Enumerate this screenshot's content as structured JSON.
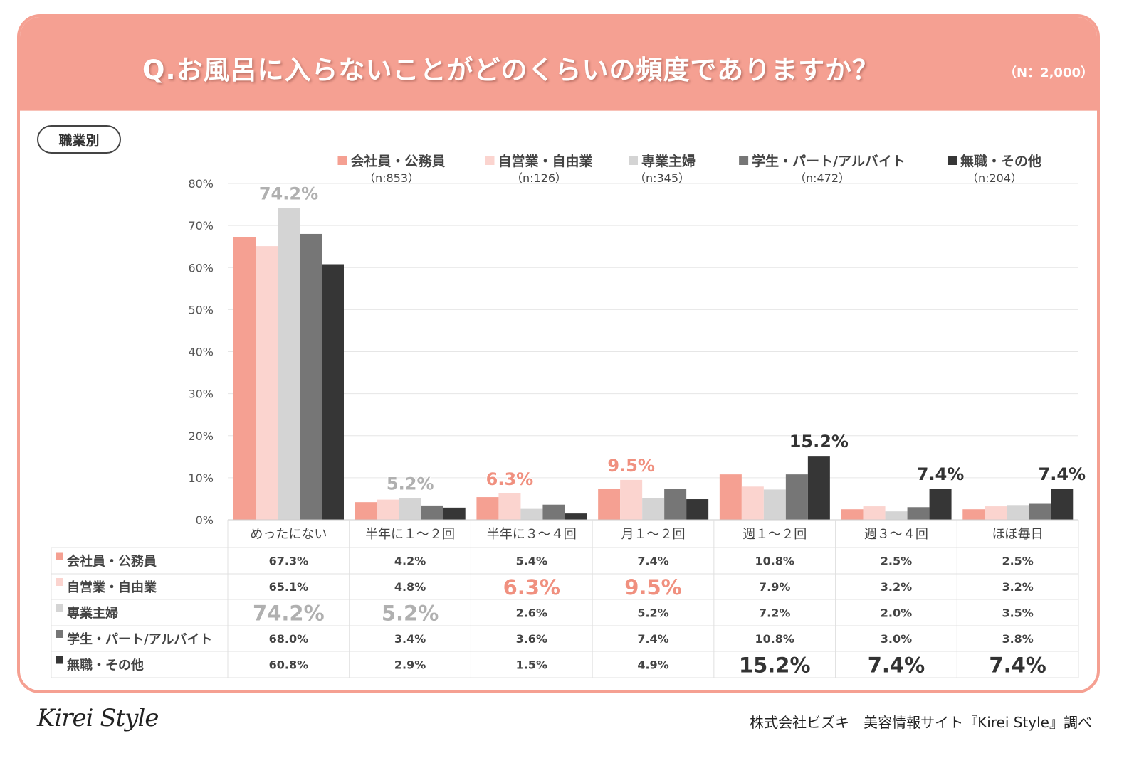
{
  "header": {
    "title": "Q.お風呂に入らないことがどのくらいの頻度でありますか？",
    "sample": "（N：2,000）"
  },
  "tag": "職業別",
  "legend": [
    {
      "label": "会社員・公務員",
      "n": "（n:853）"
    },
    {
      "label": "自営業・自由業",
      "n": "（n:126）"
    },
    {
      "label": "専業主婦",
      "n": "（n:345）"
    },
    {
      "label": "学生・パート/アルバイト",
      "n": "（n:472）"
    },
    {
      "label": "無職・その他",
      "n": "（n:204）"
    }
  ],
  "chart_data": {
    "type": "bar",
    "ylim": [
      0,
      80
    ],
    "yticks": [
      "0%",
      "10%",
      "20%",
      "30%",
      "40%",
      "50%",
      "60%",
      "70%",
      "80%"
    ],
    "grid": true,
    "legend_position": "top",
    "categories": [
      "めったにない",
      "半年に１～２回",
      "半年に３～４回",
      "月１～２回",
      "週１～２回",
      "週３～４回",
      "ほぼ毎日"
    ],
    "series": [
      {
        "name": "会社員・公務員",
        "color": "#f5a092",
        "values": [
          67.3,
          4.2,
          5.4,
          7.4,
          10.8,
          2.5,
          2.5
        ],
        "labels": [
          "67.3%",
          "4.2%",
          "5.4%",
          "7.4%",
          "10.8%",
          "2.5%",
          "2.5%"
        ]
      },
      {
        "name": "自営業・自由業",
        "color": "#fbd4cf",
        "values": [
          65.1,
          4.8,
          6.3,
          9.5,
          7.9,
          3.2,
          3.2
        ],
        "labels": [
          "65.1%",
          "4.8%",
          "6.3%",
          "9.5%",
          "7.9%",
          "3.2%",
          "3.2%"
        ]
      },
      {
        "name": "専業主婦",
        "color": "#d4d4d4",
        "values": [
          74.2,
          5.2,
          2.6,
          5.2,
          7.2,
          2.0,
          3.5
        ],
        "labels": [
          "74.2%",
          "5.2%",
          "2.6%",
          "5.2%",
          "7.2%",
          "2.0%",
          "3.5%"
        ]
      },
      {
        "name": "学生・パート/アルバイト",
        "color": "#767676",
        "values": [
          68.0,
          3.4,
          3.6,
          7.4,
          10.8,
          3.0,
          3.8
        ],
        "labels": [
          "68.0%",
          "3.4%",
          "3.6%",
          "7.4%",
          "10.8%",
          "3.0%",
          "3.8%"
        ]
      },
      {
        "name": "無職・その他",
        "color": "#363636",
        "values": [
          60.8,
          2.9,
          1.5,
          4.9,
          15.2,
          7.4,
          7.4
        ],
        "labels": [
          "60.8%",
          "2.9%",
          "1.5%",
          "4.9%",
          "15.2%",
          "7.4%",
          "7.4%"
        ]
      }
    ],
    "highlights": [
      {
        "category": 0,
        "series": 2,
        "color": "#b0b0b0"
      },
      {
        "category": 1,
        "series": 2,
        "color": "#b0b0b0"
      },
      {
        "category": 2,
        "series": 1,
        "color": "#f0907f"
      },
      {
        "category": 3,
        "series": 1,
        "color": "#f0907f"
      },
      {
        "category": 4,
        "series": 4,
        "color": "#333333"
      },
      {
        "category": 5,
        "series": 4,
        "color": "#333333"
      },
      {
        "category": 6,
        "series": 4,
        "color": "#333333"
      }
    ]
  },
  "footer": {
    "logo": "Kirei Style",
    "source": "株式会社ビズキ　美容情報サイト『Kirei Style』調べ"
  }
}
